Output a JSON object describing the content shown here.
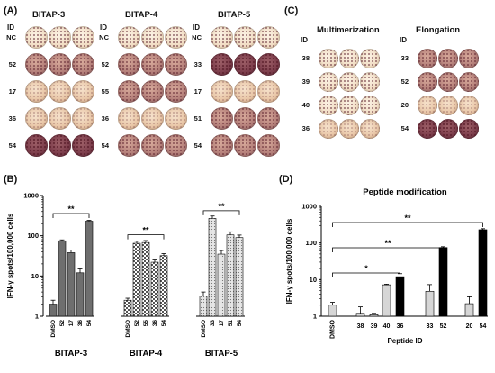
{
  "panels": {
    "A": "(A)",
    "B": "(B)",
    "C": "(C)",
    "D": "(D)"
  },
  "panel_A": {
    "groups": [
      {
        "title": "BITAP-3",
        "id_header": "ID",
        "rows": [
          "NC",
          "52",
          "17",
          "36",
          "54"
        ]
      },
      {
        "title": "BITAP-4",
        "id_header": "ID",
        "rows": [
          "NC",
          "52",
          "55",
          "36",
          "54"
        ]
      },
      {
        "title": "BITAP-5",
        "id_header": "ID",
        "rows": [
          "NC",
          "33",
          "17",
          "51",
          "54"
        ]
      }
    ]
  },
  "panel_C": {
    "groups": [
      {
        "title": "Multimerization",
        "id_header": "ID",
        "rows": [
          "38",
          "39",
          "40",
          "36"
        ]
      },
      {
        "title": "Elongation",
        "id_header": "ID",
        "rows": [
          "33",
          "52",
          "20",
          "54"
        ]
      }
    ]
  },
  "chart_data": [
    {
      "type": "bar",
      "panel": "B",
      "ylabel": "IFN-γ spots/100,000 cells",
      "yscale": "log",
      "ylim": [
        1,
        1000
      ],
      "yticks": [
        "1",
        "10",
        "100",
        "1000"
      ],
      "groups": [
        {
          "name": "BITAP-3",
          "categories": [
            "DMSO",
            "52",
            "17",
            "36",
            "54"
          ],
          "values": [
            2,
            75,
            38,
            12,
            230
          ],
          "errors": [
            0.5,
            4,
            6,
            3,
            12
          ]
        },
        {
          "name": "BITAP-4",
          "categories": [
            "DMSO",
            "52",
            "55",
            "36",
            "54"
          ],
          "values": [
            2.5,
            65,
            68,
            22,
            32
          ],
          "errors": [
            0.3,
            8,
            8,
            3,
            4
          ]
        },
        {
          "name": "BITAP-5",
          "categories": [
            "DMSO",
            "33",
            "17",
            "51",
            "54"
          ],
          "values": [
            3.2,
            270,
            35,
            105,
            90
          ],
          "errors": [
            0.8,
            40,
            8,
            20,
            14
          ]
        }
      ],
      "annotations": [
        "**",
        "**",
        "**"
      ],
      "colors": {
        "BITAP-3": "#6e6e6e",
        "BITAP-4": "#f4f4f4",
        "BITAP-5": "#dadada"
      }
    },
    {
      "type": "bar",
      "panel": "D",
      "title": "Peptide modification",
      "ylabel": "IFN-γ spots/100,000 cells",
      "xlabel": "Peptide ID",
      "yscale": "log",
      "ylim": [
        1,
        1000
      ],
      "yticks": [
        "1",
        "10",
        "100",
        "1000"
      ],
      "categories": [
        "DMSO",
        "38",
        "39",
        "40",
        "36",
        "33",
        "52",
        "20",
        "54"
      ],
      "values": [
        2,
        1.2,
        1.1,
        7.2,
        12,
        4.8,
        75,
        2.2,
        230
      ],
      "errors": [
        0.4,
        0.6,
        0.1,
        0.3,
        2.5,
        2.5,
        4,
        1.2,
        15
      ],
      "fills": [
        "light",
        "light",
        "light",
        "light",
        "dark",
        "light",
        "dark",
        "light",
        "dark"
      ],
      "annotations": [
        "*",
        "**",
        "**"
      ],
      "colors": {
        "light": "#d6d6d6",
        "dark": "#000000"
      }
    }
  ]
}
